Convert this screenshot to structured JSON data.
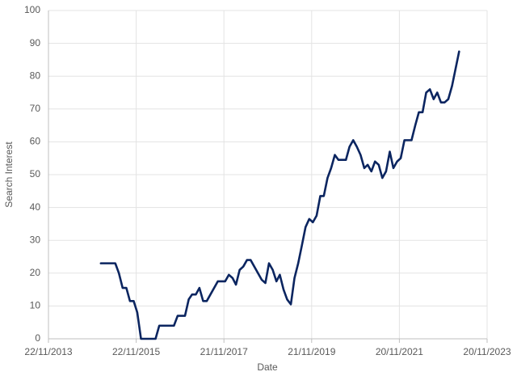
{
  "chart_data": {
    "type": "line",
    "x_label": "Date",
    "y_label": "Search Interest",
    "x": [
      "2015-02",
      "2015-06",
      "2015-07",
      "2015-08",
      "2015-09",
      "2015-10",
      "2015-11",
      "2015-12",
      "2016-01",
      "2016-05",
      "2016-06",
      "2016-10",
      "2016-11",
      "2017-01",
      "2017-02",
      "2017-03",
      "2017-04",
      "2017-05",
      "2017-06",
      "2017-07",
      "2017-10",
      "2017-12",
      "2018-01",
      "2018-02",
      "2018-03",
      "2018-04",
      "2018-05",
      "2018-06",
      "2018-07",
      "2018-10",
      "2018-11",
      "2018-12",
      "2019-01",
      "2019-02",
      "2019-03",
      "2019-04",
      "2019-05",
      "2019-06",
      "2019-07",
      "2019-08",
      "2019-09",
      "2019-10",
      "2019-11",
      "2019-12",
      "2020-01",
      "2020-02",
      "2020-03",
      "2020-04",
      "2020-05",
      "2020-06",
      "2020-07",
      "2020-09",
      "2020-10",
      "2020-11",
      "2020-12",
      "2021-01",
      "2021-02",
      "2021-03",
      "2021-04",
      "2021-05",
      "2021-06",
      "2021-07",
      "2021-08",
      "2021-09",
      "2021-10",
      "2021-11",
      "2021-12",
      "2022-01",
      "2022-03",
      "2022-04",
      "2022-05",
      "2022-06",
      "2022-07",
      "2022-08",
      "2022-09",
      "2022-10",
      "2022-11",
      "2022-12",
      "2023-01",
      "2023-02",
      "2023-03",
      "2023-04"
    ],
    "values": [
      23,
      23,
      20,
      15.5,
      15.5,
      11.5,
      11.5,
      8,
      0,
      0,
      4,
      4,
      7,
      7,
      12,
      13.5,
      13.5,
      15.5,
      11.5,
      11.5,
      17.5,
      17.5,
      19.5,
      18.5,
      16.5,
      21,
      22,
      24,
      24,
      18,
      17,
      23,
      21,
      17.5,
      19.5,
      15,
      12,
      10.5,
      18.5,
      23,
      28.5,
      34,
      36.5,
      35.5,
      37.5,
      43.5,
      43.5,
      49,
      52,
      56,
      54.5,
      54.5,
      58.5,
      60.5,
      58.5,
      56,
      52,
      53,
      51,
      54,
      53,
      49,
      51,
      57,
      52,
      54,
      55,
      60.5,
      60.5,
      65,
      69,
      69,
      75,
      76,
      73,
      75,
      72,
      72,
      73,
      77,
      82,
      87.5
    ],
    "color": "#0b2560",
    "xlim": [
      "2013-11-22",
      "2023-11-20"
    ],
    "xticks": [
      {
        "value": "2013-11-22",
        "label": "22/11/2013"
      },
      {
        "value": "2015-11-22",
        "label": "22/11/2015"
      },
      {
        "value": "2017-11-21",
        "label": "21/11/2017"
      },
      {
        "value": "2019-11-21",
        "label": "21/11/2019"
      },
      {
        "value": "2021-11-20",
        "label": "20/11/2021"
      },
      {
        "value": "2023-11-20",
        "label": "20/11/2023"
      }
    ],
    "ylim": [
      0,
      100
    ],
    "yticks": [
      0,
      10,
      20,
      30,
      40,
      50,
      60,
      70,
      80,
      90,
      100
    ],
    "grid": true
  }
}
